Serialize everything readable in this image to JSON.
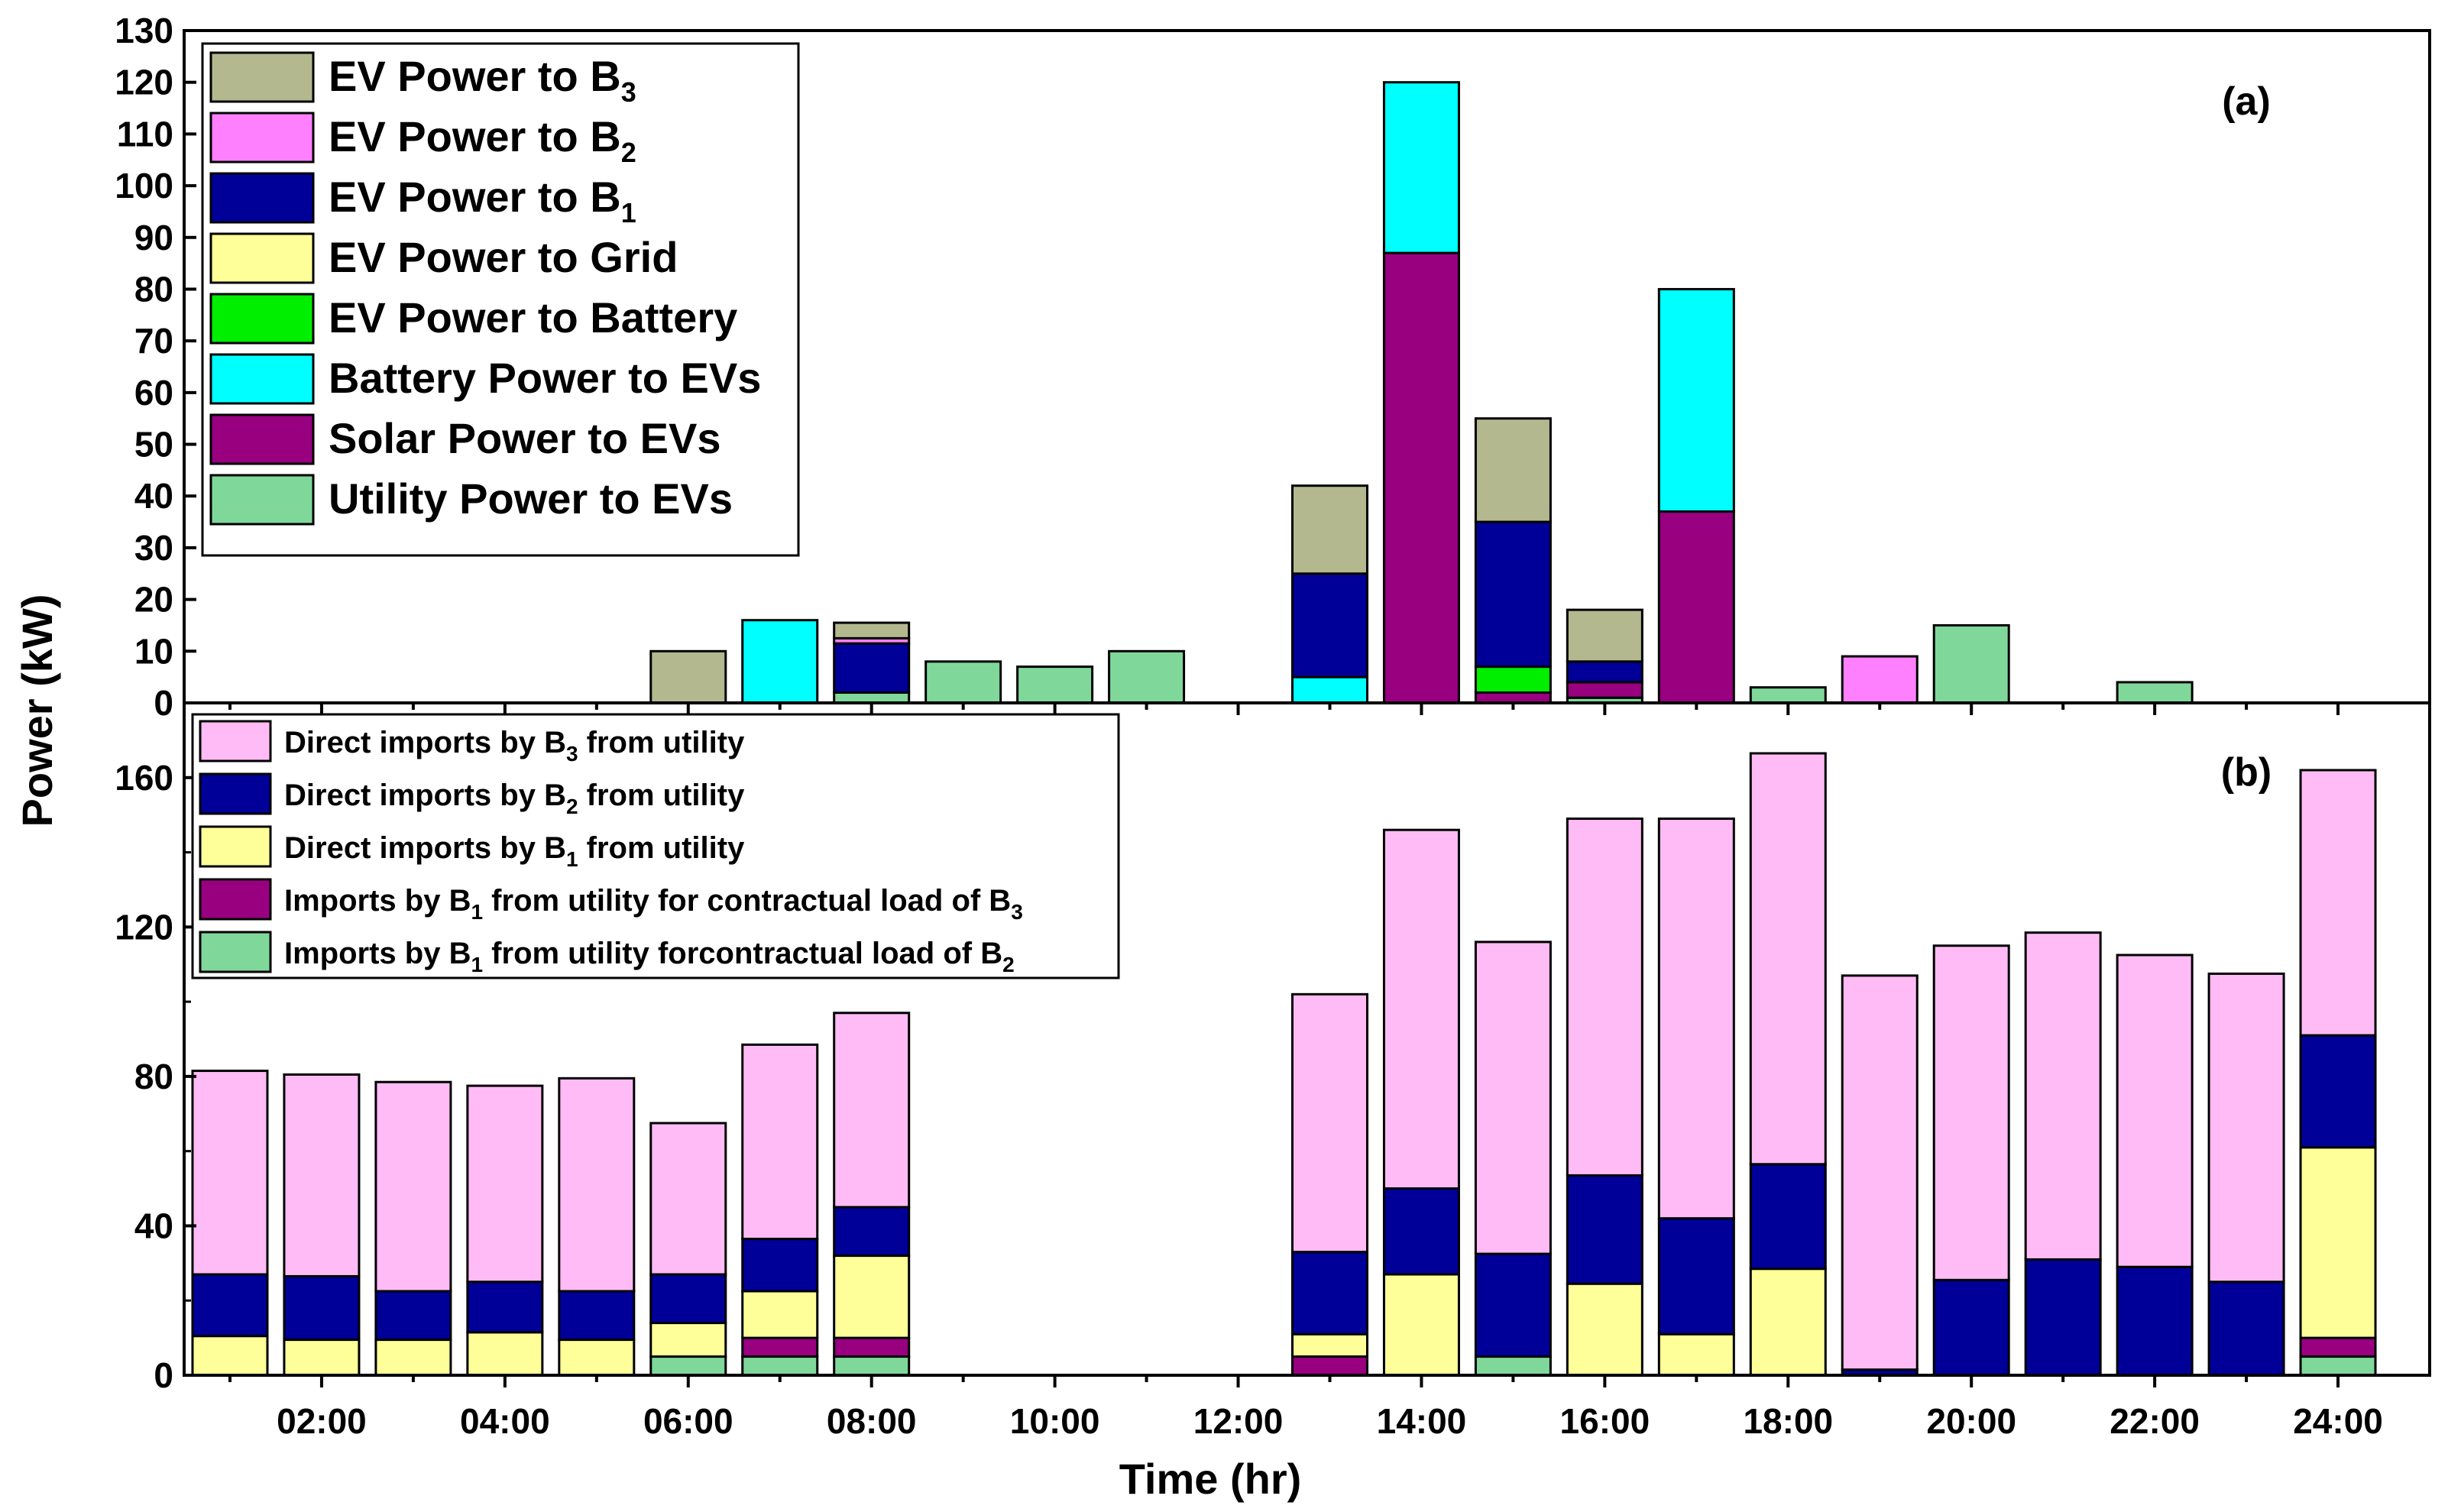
{
  "chart_data": [
    {
      "id": "a",
      "type": "bar",
      "stacked": true,
      "panel_label": "(a)",
      "ylabel": "Power (kW)",
      "xlabel": "Time (hr)",
      "ylim": [
        0,
        130
      ],
      "yticks": [
        0,
        10,
        20,
        30,
        40,
        50,
        60,
        70,
        80,
        90,
        100,
        110,
        120,
        130
      ],
      "legend_position": "top-left",
      "categories": [
        "01:00",
        "02:00",
        "03:00",
        "04:00",
        "05:00",
        "06:00",
        "07:00",
        "08:00",
        "09:00",
        "10:00",
        "11:00",
        "12:00",
        "13:00",
        "14:00",
        "15:00",
        "16:00",
        "17:00",
        "18:00",
        "19:00",
        "20:00",
        "21:00",
        "22:00",
        "23:00",
        "24:00"
      ],
      "series": [
        {
          "name": "Utility Power to EVs",
          "label": "Utility Power to EVs",
          "color": "#7fd89a",
          "values": [
            0,
            0,
            0,
            0,
            0,
            0,
            0,
            2,
            8,
            7,
            10,
            0,
            0,
            0,
            0,
            1,
            0,
            3,
            0,
            15,
            0,
            4,
            0,
            0
          ]
        },
        {
          "name": "Solar Power to EVs",
          "label": "Solar Power to EVs",
          "color": "#990080",
          "values": [
            0,
            0,
            0,
            0,
            0,
            0,
            0,
            0,
            0,
            0,
            0,
            0,
            0,
            87,
            2,
            3,
            37,
            0,
            0,
            0,
            0,
            0,
            0,
            0
          ]
        },
        {
          "name": "Battery Power to EVs",
          "label": "Battery Power to EVs",
          "color": "#00ffff",
          "values": [
            0,
            0,
            0,
            0,
            0,
            0,
            16,
            0,
            0,
            0,
            0,
            0,
            5,
            33,
            0,
            0,
            43,
            0,
            0,
            0,
            0,
            0,
            0,
            0
          ]
        },
        {
          "name": "EV Power to Battery",
          "label": "EV Power to Battery",
          "color": "#00ee00",
          "values": [
            0,
            0,
            0,
            0,
            0,
            0,
            0,
            0,
            0,
            0,
            0,
            0,
            0,
            0,
            5,
            0,
            0,
            0,
            0,
            0,
            0,
            0,
            0,
            0
          ]
        },
        {
          "name": "EV Power to Grid",
          "label": "EV Power to Grid",
          "color": "#ffff99",
          "values": [
            0,
            0,
            0,
            0,
            0,
            0,
            0,
            0,
            0,
            0,
            0,
            0,
            0,
            0,
            0,
            0,
            0,
            0,
            0,
            0,
            0,
            0,
            0,
            0
          ]
        },
        {
          "name": "EV Power to B1",
          "label": "EV Power to B",
          "sub": "1",
          "color": "#000099",
          "values": [
            0,
            0,
            0,
            0,
            0,
            0,
            0,
            9.5,
            0,
            0,
            0,
            0,
            20,
            0,
            28,
            4,
            0,
            0,
            0,
            0,
            0,
            0,
            0,
            0
          ]
        },
        {
          "name": "EV Power to B2",
          "label": "EV Power to B",
          "sub": "2",
          "color": "#ff80ff",
          "values": [
            0,
            0,
            0,
            0,
            0,
            0,
            0,
            1,
            0,
            0,
            0,
            0,
            0,
            0,
            0,
            0,
            0,
            0,
            9,
            0,
            0,
            0,
            0,
            0
          ]
        },
        {
          "name": "EV Power to B3",
          "label": "EV Power to B",
          "sub": "3",
          "color": "#b3b88f",
          "values": [
            0,
            0,
            0,
            0,
            0,
            10,
            0,
            3,
            0,
            0,
            0,
            0,
            17,
            0,
            20,
            10,
            0,
            0,
            0,
            0,
            0,
            0,
            0,
            0
          ]
        }
      ]
    },
    {
      "id": "b",
      "type": "bar",
      "stacked": true,
      "panel_label": "(b)",
      "ylabel": "Power (kW)",
      "xlabel": "Time (hr)",
      "ylim": [
        0,
        180
      ],
      "yticks": [
        0,
        40,
        80,
        120,
        160
      ],
      "legend_position": "top-left",
      "categories": [
        "01:00",
        "02:00",
        "03:00",
        "04:00",
        "05:00",
        "06:00",
        "07:00",
        "08:00",
        "09:00",
        "10:00",
        "11:00",
        "12:00",
        "13:00",
        "14:00",
        "15:00",
        "16:00",
        "17:00",
        "18:00",
        "19:00",
        "20:00",
        "21:00",
        "22:00",
        "23:00",
        "24:00"
      ],
      "xtick_labels": [
        "02:00",
        "04:00",
        "06:00",
        "08:00",
        "10:00",
        "12:00",
        "14:00",
        "16:00",
        "18:00",
        "20:00",
        "22:00",
        "24:00"
      ],
      "series": [
        {
          "name": "Imports by B1 from utility forcontractual load of B2",
          "label": "Imports by B",
          "sub": "1",
          "label2": " from utility forcontractual load of B",
          "sub2": "2",
          "color": "#7fd89a",
          "values": [
            0,
            0,
            0,
            0,
            0,
            5,
            5,
            5,
            0,
            0,
            0,
            0,
            0,
            0,
            5,
            0,
            0,
            0,
            0,
            0,
            0,
            0,
            0,
            5
          ]
        },
        {
          "name": "Imports by B1 from utility for contractual load of B3",
          "label": "Imports by B",
          "sub": "1",
          "label2": " from utility for contractual load of B",
          "sub2": "3",
          "color": "#990080",
          "values": [
            0,
            0,
            0,
            0,
            0,
            0,
            5,
            5,
            0,
            0,
            0,
            0,
            5,
            0,
            0,
            0,
            0,
            0,
            0,
            0,
            0,
            0,
            0,
            5
          ]
        },
        {
          "name": "Direct imports by B1 from utility",
          "label": "Direct imports by B",
          "sub": "1",
          "label2": " from utility",
          "sub2": "",
          "color": "#ffff99",
          "values": [
            10.5,
            9.5,
            9.5,
            11.5,
            9.5,
            9,
            12.5,
            22,
            0,
            0,
            0,
            0,
            6,
            27,
            0,
            24.5,
            11,
            28.5,
            0,
            0,
            0,
            0,
            0,
            51
          ]
        },
        {
          "name": "Direct imports by B2 from utility",
          "label": "Direct imports by B",
          "sub": "2",
          "label2": " from utility",
          "sub2": "",
          "color": "#000099",
          "values": [
            16.5,
            17,
            13,
            13.5,
            13,
            13,
            14,
            13,
            0,
            0,
            0,
            0,
            22,
            23,
            27.5,
            29,
            31,
            28,
            1.5,
            25.5,
            31,
            29,
            25,
            30
          ]
        },
        {
          "name": "Direct imports by B3 from utility",
          "label": "Direct imports by B",
          "sub": "3",
          "label2": " from utility",
          "sub2": "",
          "color": "#ffbbf5",
          "values": [
            54.5,
            54,
            56,
            52.5,
            57,
            40.5,
            52,
            52,
            0,
            0,
            0,
            0,
            69,
            96,
            83.5,
            95.5,
            107,
            110,
            105.5,
            89.5,
            87.5,
            83.5,
            82.5,
            71
          ]
        }
      ]
    }
  ]
}
